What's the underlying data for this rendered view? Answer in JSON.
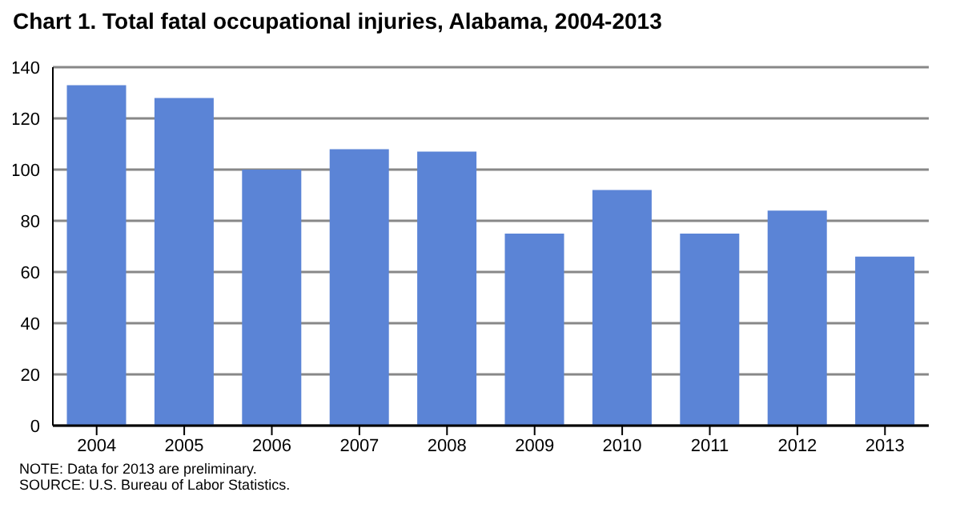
{
  "chart_data": {
    "type": "bar",
    "title": "Chart 1. Total fatal occupational injuries, Alabama, 2004-2013",
    "categories": [
      "2004",
      "2005",
      "2006",
      "2007",
      "2008",
      "2009",
      "2010",
      "2011",
      "2012",
      "2013"
    ],
    "values": [
      133,
      128,
      100,
      108,
      107,
      75,
      92,
      75,
      84,
      66
    ],
    "color": "#5b84d6",
    "ylim": [
      0,
      140
    ],
    "yticks": [
      0,
      20,
      40,
      60,
      80,
      100,
      120,
      140
    ],
    "grid": "y",
    "annotations": [
      "NOTE: Data for 2013 are preliminary.",
      "SOURCE: U.S. Bureau  of Labor Statistics."
    ]
  }
}
